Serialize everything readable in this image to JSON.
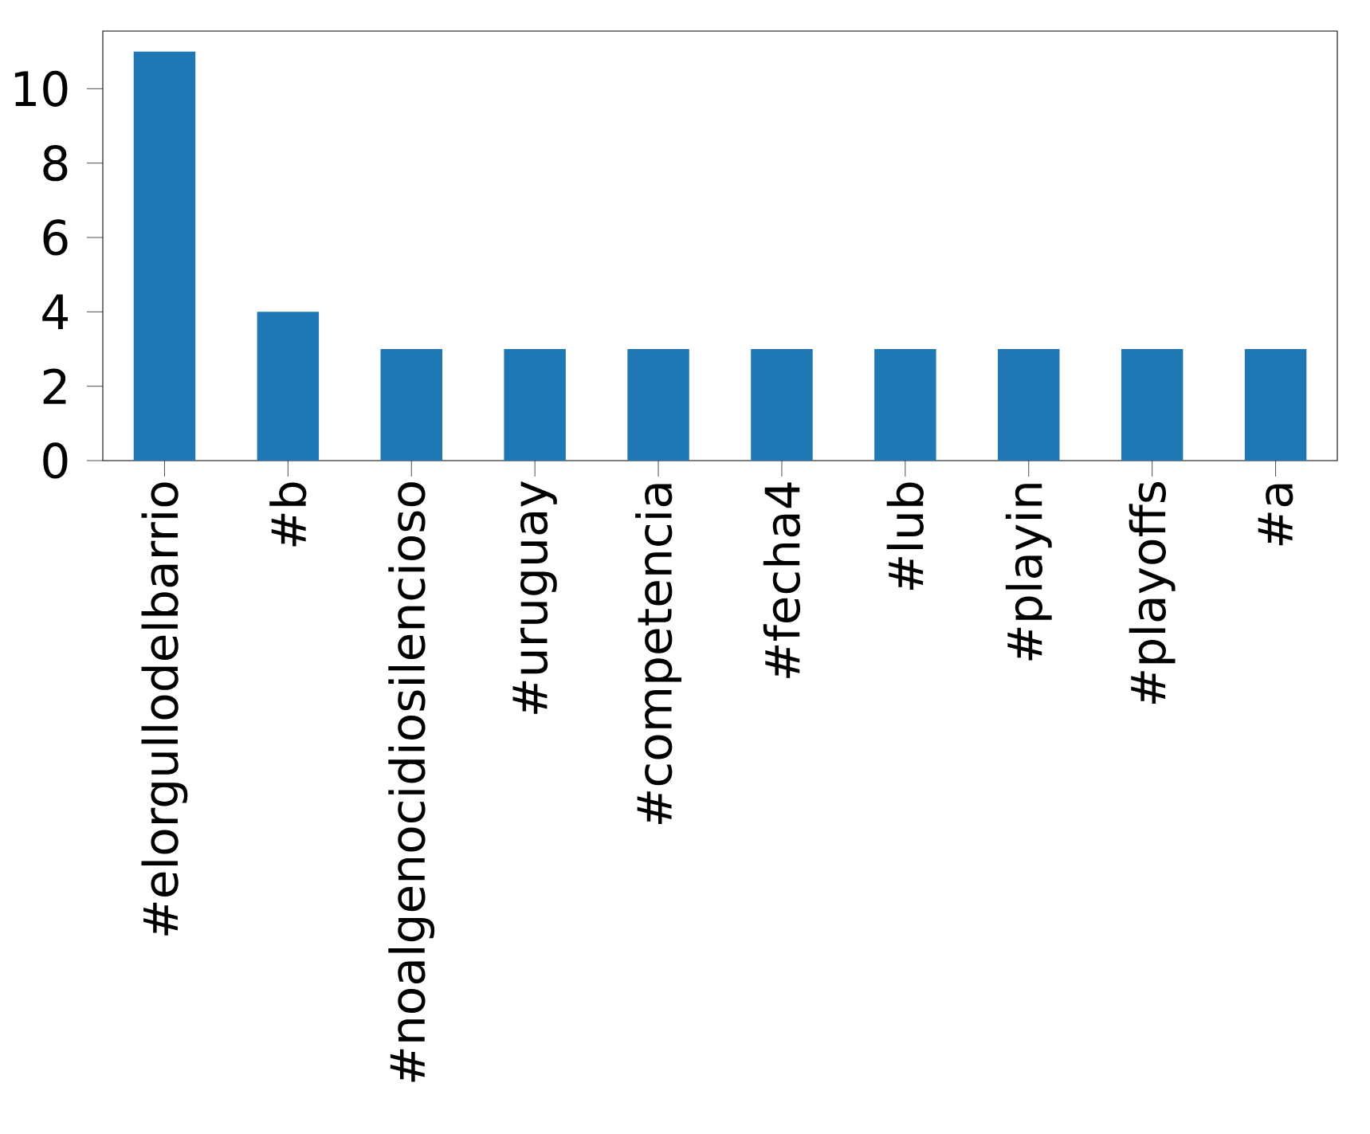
{
  "chart_data": {
    "type": "bar",
    "categories": [
      "#elorgullodelbarrio",
      "#b",
      "#noalgenocidiosilencioso",
      "#uruguay",
      "#competencia",
      "#fecha4",
      "#lub",
      "#playin",
      "#playoffs",
      "#a"
    ],
    "values": [
      11,
      4,
      3,
      3,
      3,
      3,
      3,
      3,
      3,
      3
    ],
    "color": "#1f77b4",
    "ylim": [
      0,
      11.55
    ],
    "yticks": [
      0,
      2,
      4,
      6,
      8,
      10
    ],
    "grid": false
  }
}
